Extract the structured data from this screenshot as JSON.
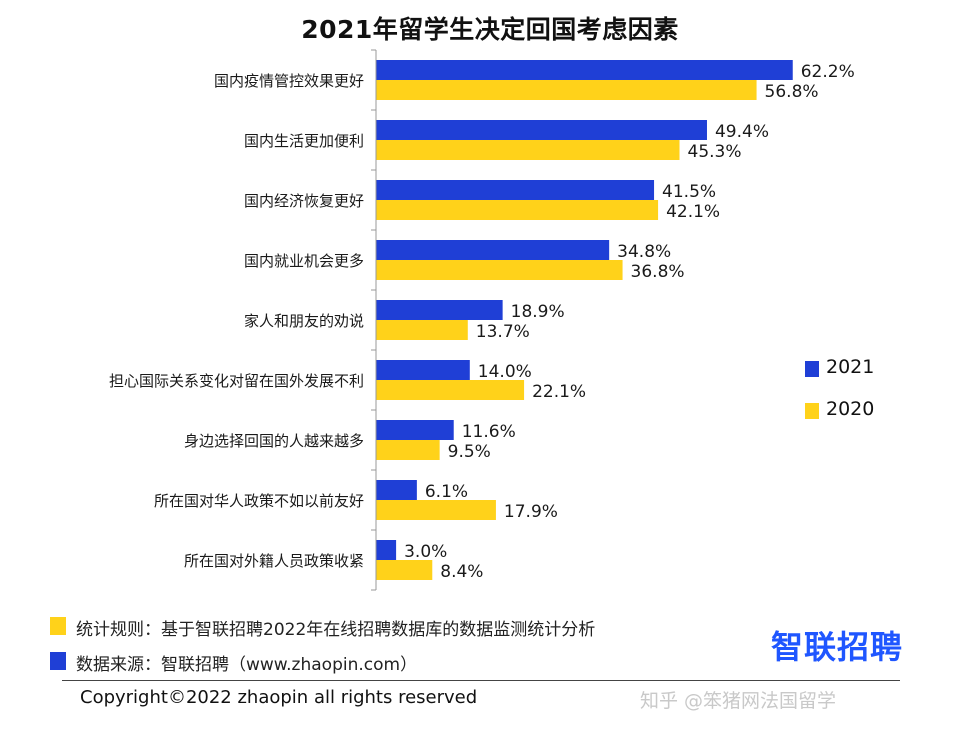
{
  "title": "2021年留学生决定回国考虑因素",
  "colors": {
    "s2021": "#1f3fd6",
    "s2020": "#ffd21a",
    "axis": "#999999"
  },
  "chart_data": {
    "type": "bar",
    "orientation": "horizontal",
    "title": "2021年留学生决定回国考虑因素",
    "categories": [
      "国内疫情管控效果更好",
      "国内生活更加便利",
      "国内经济恢复更好",
      "国内就业机会更多",
      "家人和朋友的劝说",
      "担心国际关系变化对留在国外发展不利",
      "身边选择回国的人越来越多",
      "所在国对华人政策不如以前友好",
      "所在国对外籍人员政策收紧"
    ],
    "series": [
      {
        "name": "2021",
        "values": [
          62.2,
          49.4,
          41.5,
          34.8,
          18.9,
          14.0,
          11.6,
          6.1,
          3.0
        ],
        "labels": [
          "62.2%",
          "49.4%",
          "41.5%",
          "34.8%",
          "18.9%",
          "14.0%",
          "11.6%",
          "6.1%",
          "3.0%"
        ]
      },
      {
        "name": "2020",
        "values": [
          56.8,
          45.3,
          42.1,
          36.8,
          13.7,
          22.1,
          9.5,
          17.9,
          8.4
        ],
        "labels": [
          "56.8%",
          "45.3%",
          "42.1%",
          "36.8%",
          "13.7%",
          "22.1%",
          "9.5%",
          "17.9%",
          "8.4%"
        ]
      }
    ],
    "xlim": [
      0,
      70
    ],
    "grid": false,
    "legend_position": "right"
  },
  "legend": {
    "s2021": "2021",
    "s2020": "2020"
  },
  "footer": {
    "rule_text": "统计规则：基于智联招聘2022年在线招聘数据库的数据监测统计分析",
    "source_text": "数据来源：智联招聘（www.zhaopin.com）",
    "copyright": "Copyright©2022 zhaopin all rights reserved"
  },
  "logo": "智联招聘",
  "watermark": "知乎 @笨猪网法国留学"
}
